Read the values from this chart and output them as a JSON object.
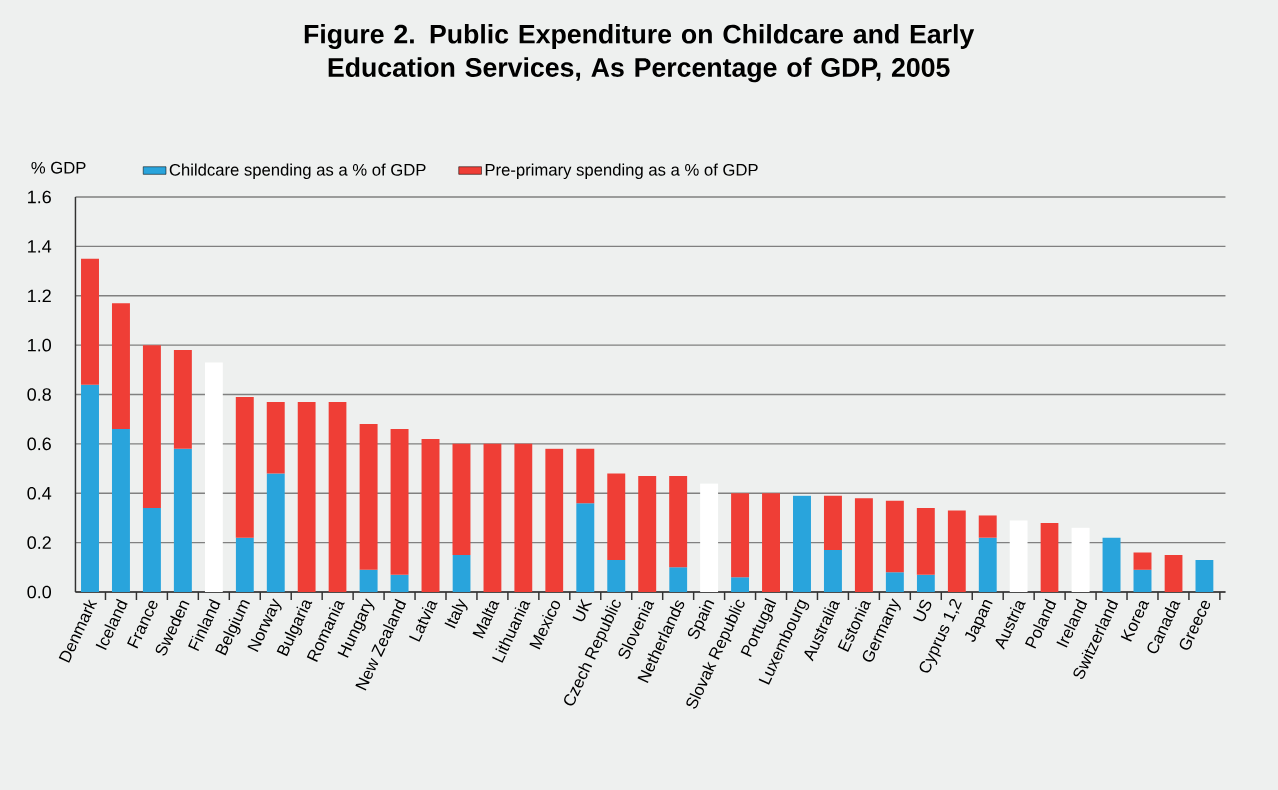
{
  "chart_data": {
    "type": "bar",
    "stacked": true,
    "title": "Figure 2. Public Expenditure on Childcare and Early Education Services, As Percentage of GDP, 2005",
    "ylabel": "% GDP",
    "categories": [
      "Denmark",
      "Iceland",
      "France",
      "Sweden",
      "Finland",
      "Belgium",
      "Norway",
      "Bulgaria",
      "Romania",
      "Hungary",
      "New Zealand",
      "Latvia",
      "Italy",
      "Malta",
      "Lithuania",
      "Mexico",
      "UK",
      "Czech Republic",
      "Slovenia",
      "Netherlands",
      "Spain",
      "Slovak Republic",
      "Portugal",
      "Luxembourg",
      "Australia",
      "Estonia",
      "Germany",
      "US",
      "Cyprus 1,2",
      "Japan",
      "Austria",
      "Poland",
      "Ireland",
      "Switzerland",
      "Korea",
      "Canada",
      "Greece"
    ],
    "series": [
      {
        "name": "Childcare spending as a % of GDP",
        "color": "#29a4dc",
        "values": [
          0.84,
          0.66,
          0.34,
          0.58,
          null,
          0.22,
          0.48,
          null,
          null,
          0.09,
          0.07,
          null,
          0.15,
          null,
          null,
          null,
          0.36,
          0.13,
          null,
          0.1,
          null,
          0.06,
          null,
          0.39,
          0.17,
          null,
          0.08,
          0.07,
          null,
          0.22,
          null,
          null,
          null,
          0.22,
          0.09,
          null,
          0.13
        ]
      },
      {
        "name": "Pre-primary spending as a % of GDP",
        "color": "#ef3e36",
        "values": [
          0.51,
          0.51,
          0.66,
          0.4,
          null,
          0.57,
          0.29,
          0.77,
          0.77,
          0.59,
          0.59,
          0.62,
          0.45,
          0.6,
          0.6,
          0.58,
          0.22,
          0.35,
          0.47,
          0.37,
          null,
          0.34,
          0.4,
          null,
          0.22,
          0.38,
          0.29,
          0.27,
          0.33,
          0.09,
          null,
          0.28,
          null,
          null,
          0.07,
          0.15,
          null
        ]
      },
      {
        "color": "#ffffff",
        "values": [
          null,
          null,
          null,
          null,
          0.93,
          null,
          null,
          null,
          null,
          null,
          null,
          null,
          null,
          null,
          null,
          null,
          null,
          null,
          null,
          null,
          0.44,
          null,
          null,
          null,
          null,
          null,
          null,
          null,
          null,
          null,
          0.29,
          null,
          0.26,
          null,
          null,
          null,
          null
        ]
      }
    ],
    "ylim": [
      0,
      1.6
    ],
    "yticks": [
      {
        "value": 0,
        "label": "0.0"
      },
      0.2,
      0.4,
      0.6,
      0.8,
      {
        "value": 1.0,
        "label": "1.0"
      },
      1.2,
      1.4,
      1.6
    ],
    "grid": "y",
    "legend": "top"
  }
}
